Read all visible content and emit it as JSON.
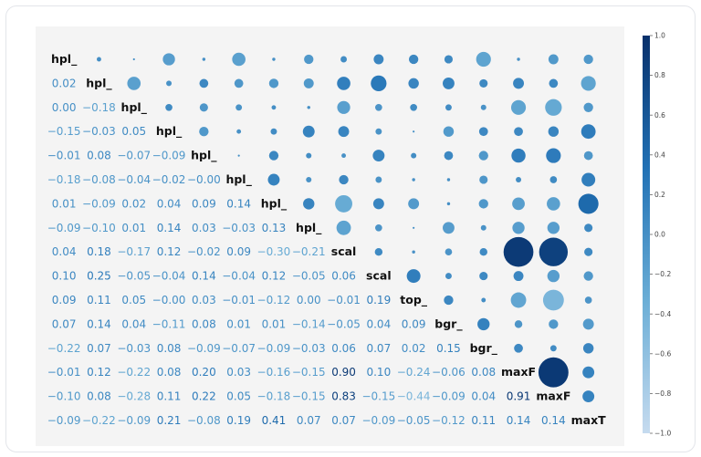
{
  "chart_data": {
    "type": "heatmap",
    "variables": [
      "hpl_",
      "hpl_",
      "hpl_",
      "hpl_",
      "hpl_",
      "hpl_",
      "hpl_",
      "hpl_",
      "scal",
      "scal",
      "top_",
      "bgr_",
      "bgr_",
      "maxF",
      "maxF",
      "maxT"
    ],
    "lower_labels": [
      [],
      [
        "0.02"
      ],
      [
        "0.00",
        "−0.18"
      ],
      [
        "−0.15",
        "−0.03",
        "0.05"
      ],
      [
        "−0.01",
        "0.08",
        "−0.07",
        "−0.09"
      ],
      [
        "−0.18",
        "−0.08",
        "−0.04",
        "−0.02",
        "−0.00"
      ],
      [
        "0.01",
        "−0.09",
        "0.02",
        "0.04",
        "0.09",
        "0.14"
      ],
      [
        "−0.09",
        "−0.10",
        "0.01",
        "0.14",
        "0.03",
        "−0.03",
        "0.13"
      ],
      [
        "0.04",
        "0.18",
        "−0.17",
        "0.12",
        "−0.02",
        "0.09",
        "−0.30",
        "−0.21"
      ],
      [
        "0.10",
        "0.25",
        "−0.05",
        "−0.04",
        "0.14",
        "−0.04",
        "0.12",
        "−0.05",
        "0.06"
      ],
      [
        "0.09",
        "0.11",
        "0.05",
        "−0.00",
        "0.03",
        "−0.01",
        "−0.12",
        "0.00",
        "−0.01",
        "0.19"
      ],
      [
        "0.07",
        "0.14",
        "0.04",
        "−0.11",
        "0.08",
        "0.01",
        "0.01",
        "−0.14",
        "−0.05",
        "0.04",
        "0.09"
      ],
      [
        "−0.22",
        "0.07",
        "−0.03",
        "0.08",
        "−0.09",
        "−0.07",
        "−0.09",
        "−0.03",
        "0.06",
        "0.07",
        "0.02",
        "0.15"
      ],
      [
        "−0.01",
        "0.12",
        "−0.22",
        "0.08",
        "0.20",
        "0.03",
        "−0.16",
        "−0.15",
        "0.90",
        "0.10",
        "−0.24",
        "−0.06",
        "0.08"
      ],
      [
        "−0.10",
        "0.08",
        "−0.28",
        "0.11",
        "0.22",
        "0.05",
        "−0.18",
        "−0.15",
        "0.83",
        "−0.15",
        "−0.44",
        "−0.09",
        "0.04",
        "0.91"
      ],
      [
        "−0.09",
        "−0.22",
        "−0.09",
        "0.21",
        "−0.08",
        "0.19",
        "0.41",
        "0.07",
        "0.07",
        "−0.09",
        "−0.05",
        "−0.12",
        "0.11",
        "0.14",
        "0.14"
      ]
    ],
    "colorbar": {
      "range": [
        -1.0,
        1.0
      ],
      "ticks": [
        "1.0",
        "0.8",
        "0.6",
        "0.4",
        "0.2",
        "0.0",
        "−0.2",
        "−0.4",
        "−0.6",
        "−0.8",
        "−1.0"
      ],
      "colors": [
        "#08306b",
        "#2171b5",
        "#6baed6",
        "#c6dbef"
      ],
      "placement": "right"
    },
    "upper_marker": "circle",
    "grid": false
  }
}
